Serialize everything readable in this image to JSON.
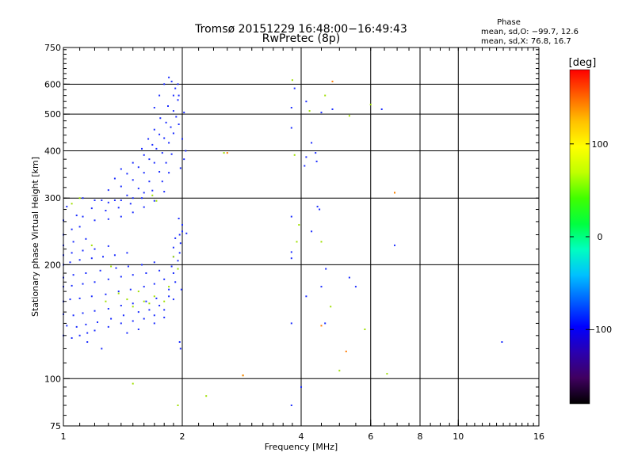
{
  "figure": {
    "title_line1": "Tromsø 20151229 16:48:00−16:49:43",
    "title_line2": "RwPretec (8p)",
    "phase_note": {
      "heading": "Phase",
      "line_o": "mean, sd,O: −99.7, 12.6",
      "line_x": "mean, sd,X: 76.8, 16.7"
    }
  },
  "chart_data": {
    "type": "scatter",
    "xlabel": "Frequency [MHz]",
    "ylabel": "Stationary phase Virtual Height [km]",
    "x_scale": "log",
    "y_scale": "log",
    "xlim": [
      1,
      16
    ],
    "ylim": [
      75,
      750
    ],
    "x_ticks": [
      {
        "value": 1,
        "label": "1"
      },
      {
        "value": 2,
        "label": "2"
      },
      {
        "value": 4,
        "label": "4"
      },
      {
        "value": 6,
        "label": "6"
      },
      {
        "value": 8,
        "label": "8"
      },
      {
        "value": 10,
        "label": "10"
      },
      {
        "value": 16,
        "label": "16"
      }
    ],
    "x_grid": [
      2,
      4,
      6,
      8,
      10
    ],
    "y_ticks": [
      {
        "value": 75,
        "label": "75"
      },
      {
        "value": 100,
        "label": "100"
      },
      {
        "value": 200,
        "label": "200"
      },
      {
        "value": 300,
        "label": "300"
      },
      {
        "value": 400,
        "label": "400"
      },
      {
        "value": 500,
        "label": "500"
      },
      {
        "value": 600,
        "label": "600"
      },
      {
        "value": 750,
        "label": "750"
      }
    ],
    "y_grid": [
      100,
      200,
      300,
      400,
      500,
      600
    ],
    "grid": true,
    "colorbar": {
      "unit": "[deg]",
      "range": [
        -180,
        180
      ],
      "ticks": [
        {
          "value": 100,
          "label": "100"
        },
        {
          "value": 0,
          "label": "0"
        },
        {
          "value": -100,
          "label": "−100"
        }
      ],
      "colors": [
        "#000000",
        "#400060",
        "#2a00b0",
        "#0000ff",
        "#0060ff",
        "#00c0ff",
        "#00ffc0",
        "#00ff40",
        "#40ff00",
        "#c0ff00",
        "#ffff00",
        "#ffc000",
        "#ff6000",
        "#ff0000"
      ]
    },
    "series": [
      {
        "mode": "O",
        "color": "#1a2cff",
        "points": [
          [
            1.0,
            130
          ],
          [
            1.05,
            128
          ],
          [
            1.1,
            130
          ],
          [
            1.15,
            132
          ],
          [
            1.2,
            134
          ],
          [
            1.3,
            137
          ],
          [
            1.4,
            140
          ],
          [
            1.5,
            142
          ],
          [
            1.6,
            144
          ],
          [
            1.7,
            147
          ],
          [
            1.8,
            152
          ],
          [
            1.9,
            162
          ],
          [
            1.02,
            138
          ],
          [
            1.08,
            137
          ],
          [
            1.14,
            139
          ],
          [
            1.22,
            141
          ],
          [
            1.32,
            144
          ],
          [
            1.42,
            147
          ],
          [
            1.55,
            150
          ],
          [
            1.65,
            152
          ],
          [
            1.75,
            156
          ],
          [
            1.85,
            165
          ],
          [
            1.0,
            148
          ],
          [
            1.06,
            147
          ],
          [
            1.12,
            149
          ],
          [
            1.2,
            151
          ],
          [
            1.3,
            153
          ],
          [
            1.4,
            156
          ],
          [
            1.5,
            158
          ],
          [
            1.62,
            160
          ],
          [
            1.72,
            163
          ],
          [
            1.85,
            172
          ],
          [
            1.92,
            180
          ],
          [
            1.0,
            160
          ],
          [
            1.04,
            162
          ],
          [
            1.1,
            163
          ],
          [
            1.18,
            165
          ],
          [
            1.28,
            167
          ],
          [
            1.38,
            170
          ],
          [
            1.48,
            172
          ],
          [
            1.6,
            175
          ],
          [
            1.7,
            178
          ],
          [
            1.8,
            183
          ],
          [
            1.9,
            190
          ],
          [
            1.0,
            175
          ],
          [
            1.05,
            176
          ],
          [
            1.12,
            178
          ],
          [
            1.2,
            180
          ],
          [
            1.3,
            183
          ],
          [
            1.4,
            186
          ],
          [
            1.5,
            188
          ],
          [
            1.62,
            190
          ],
          [
            1.75,
            193
          ],
          [
            1.88,
            198
          ],
          [
            1.95,
            205
          ],
          [
            1.0,
            185
          ],
          [
            1.06,
            188
          ],
          [
            1.14,
            190
          ],
          [
            1.24,
            193
          ],
          [
            1.36,
            196
          ],
          [
            1.46,
            198
          ],
          [
            1.58,
            200
          ],
          [
            1.7,
            203
          ],
          [
            1.9,
            210
          ],
          [
            1.97,
            215
          ],
          [
            1.0,
            200
          ],
          [
            1.04,
            203
          ],
          [
            1.1,
            206
          ],
          [
            1.18,
            208
          ],
          [
            1.26,
            210
          ],
          [
            1.35,
            212
          ],
          [
            1.45,
            215
          ],
          [
            1.9,
            222
          ],
          [
            1.98,
            228
          ],
          [
            1.0,
            212
          ],
          [
            1.05,
            215
          ],
          [
            1.12,
            218
          ],
          [
            1.2,
            220
          ],
          [
            1.3,
            224
          ],
          [
            1.92,
            235
          ],
          [
            1.97,
            240
          ],
          [
            2.0,
            245
          ],
          [
            1.0,
            225
          ],
          [
            1.06,
            230
          ],
          [
            1.14,
            234
          ],
          [
            1.0,
            240
          ],
          [
            1.05,
            248
          ],
          [
            1.1,
            252
          ],
          [
            1.0,
            262
          ],
          [
            1.08,
            270
          ],
          [
            1.02,
            285
          ],
          [
            1.12,
            300
          ],
          [
            1.2,
            296
          ],
          [
            1.3,
            292
          ],
          [
            1.4,
            296
          ],
          [
            1.5,
            300
          ],
          [
            1.6,
            310
          ],
          [
            1.12,
            268
          ],
          [
            1.2,
            262
          ],
          [
            1.3,
            264
          ],
          [
            1.4,
            268
          ],
          [
            1.5,
            275
          ],
          [
            1.6,
            284
          ],
          [
            1.7,
            295
          ],
          [
            1.8,
            312
          ],
          [
            1.18,
            282
          ],
          [
            1.28,
            278
          ],
          [
            1.38,
            283
          ],
          [
            1.48,
            290
          ],
          [
            1.58,
            300
          ],
          [
            1.68,
            314
          ],
          [
            1.78,
            332
          ],
          [
            1.85,
            350
          ],
          [
            1.25,
            296
          ],
          [
            1.35,
            296
          ],
          [
            1.45,
            305
          ],
          [
            1.55,
            318
          ],
          [
            1.65,
            332
          ],
          [
            1.75,
            352
          ],
          [
            1.82,
            372
          ],
          [
            1.88,
            392
          ],
          [
            1.3,
            315
          ],
          [
            1.4,
            322
          ],
          [
            1.5,
            335
          ],
          [
            1.6,
            350
          ],
          [
            1.7,
            372
          ],
          [
            1.78,
            395
          ],
          [
            1.85,
            420
          ],
          [
            1.9,
            445
          ],
          [
            1.35,
            338
          ],
          [
            1.45,
            348
          ],
          [
            1.55,
            362
          ],
          [
            1.65,
            380
          ],
          [
            1.72,
            405
          ],
          [
            1.8,
            432
          ],
          [
            1.87,
            462
          ],
          [
            1.93,
            492
          ],
          [
            1.4,
            358
          ],
          [
            1.5,
            372
          ],
          [
            1.6,
            390
          ],
          [
            1.68,
            415
          ],
          [
            1.75,
            442
          ],
          [
            1.82,
            475
          ],
          [
            1.9,
            510
          ],
          [
            1.95,
            545
          ],
          [
            1.58,
            405
          ],
          [
            1.64,
            430
          ],
          [
            1.7,
            455
          ],
          [
            1.76,
            488
          ],
          [
            1.84,
            525
          ],
          [
            1.9,
            560
          ],
          [
            1.95,
            600
          ],
          [
            1.7,
            520
          ],
          [
            1.75,
            560
          ],
          [
            1.8,
            600
          ],
          [
            1.85,
            625
          ],
          [
            1.88,
            610
          ],
          [
            1.92,
            585
          ],
          [
            1.96,
            560
          ],
          [
            1.98,
            360
          ],
          [
            2.02,
            380
          ],
          [
            2.04,
            400
          ],
          [
            2.0,
            430
          ],
          [
            1.96,
            470
          ],
          [
            2.02,
            505
          ],
          [
            1.98,
            120
          ],
          [
            1.97,
            125
          ],
          [
            1.99,
            172
          ],
          [
            2.05,
            242
          ],
          [
            2.0,
            255
          ],
          [
            1.96,
            265
          ],
          [
            3.78,
            85
          ],
          [
            3.78,
            140
          ],
          [
            3.78,
            208
          ],
          [
            3.78,
            216
          ],
          [
            3.78,
            268
          ],
          [
            3.78,
            460
          ],
          [
            3.78,
            520
          ],
          [
            3.85,
            585
          ],
          [
            4.0,
            95
          ],
          [
            4.08,
            365
          ],
          [
            4.12,
            385
          ],
          [
            4.12,
            540
          ],
          [
            4.12,
            165
          ],
          [
            4.25,
            420
          ],
          [
            4.25,
            245
          ],
          [
            4.35,
            395
          ],
          [
            4.38,
            375
          ],
          [
            4.4,
            285
          ],
          [
            4.45,
            280
          ],
          [
            4.5,
            505
          ],
          [
            4.5,
            175
          ],
          [
            4.6,
            140
          ],
          [
            4.62,
            195
          ],
          [
            4.8,
            515
          ],
          [
            5.3,
            185
          ],
          [
            5.5,
            175
          ],
          [
            6.4,
            515
          ],
          [
            6.9,
            225
          ],
          [
            12.9,
            125
          ],
          [
            1.15,
            125
          ],
          [
            1.25,
            120
          ],
          [
            1.45,
            132
          ],
          [
            1.55,
            135
          ],
          [
            1.7,
            140
          ],
          [
            1.8,
            145
          ]
        ]
      },
      {
        "mode": "X",
        "color": "#9fe000",
        "points": [
          [
            1.05,
            290
          ],
          [
            1.1,
            300
          ],
          [
            1.18,
            225
          ],
          [
            1.28,
            160
          ],
          [
            1.32,
            198
          ],
          [
            1.38,
            168
          ],
          [
            1.45,
            162
          ],
          [
            1.5,
            155
          ],
          [
            1.55,
            170
          ],
          [
            1.6,
            160
          ],
          [
            1.65,
            158
          ],
          [
            1.7,
            165
          ],
          [
            1.8,
            160
          ],
          [
            1.85,
            175
          ],
          [
            1.9,
            210
          ],
          [
            1.95,
            195
          ],
          [
            1.68,
            305
          ],
          [
            1.72,
            295
          ],
          [
            1.5,
            97
          ],
          [
            1.95,
            85
          ],
          [
            2.3,
            90
          ],
          [
            2.55,
            395
          ],
          [
            2.85,
            102
          ],
          [
            3.8,
            615
          ],
          [
            3.85,
            390
          ],
          [
            3.9,
            230
          ],
          [
            3.95,
            255
          ],
          [
            4.2,
            510
          ],
          [
            4.5,
            230
          ],
          [
            4.6,
            560
          ],
          [
            4.75,
            155
          ],
          [
            5.0,
            105
          ],
          [
            5.3,
            495
          ],
          [
            5.8,
            135
          ],
          [
            6.0,
            530
          ],
          [
            6.6,
            103
          ],
          [
            6.9,
            310
          ]
        ]
      },
      {
        "mode": "X",
        "color": "#ff7a00",
        "points": [
          [
            2.6,
            395
          ],
          [
            2.85,
            102
          ],
          [
            4.5,
            138
          ],
          [
            4.8,
            610
          ],
          [
            5.2,
            118
          ],
          [
            6.9,
            310
          ]
        ]
      }
    ]
  }
}
